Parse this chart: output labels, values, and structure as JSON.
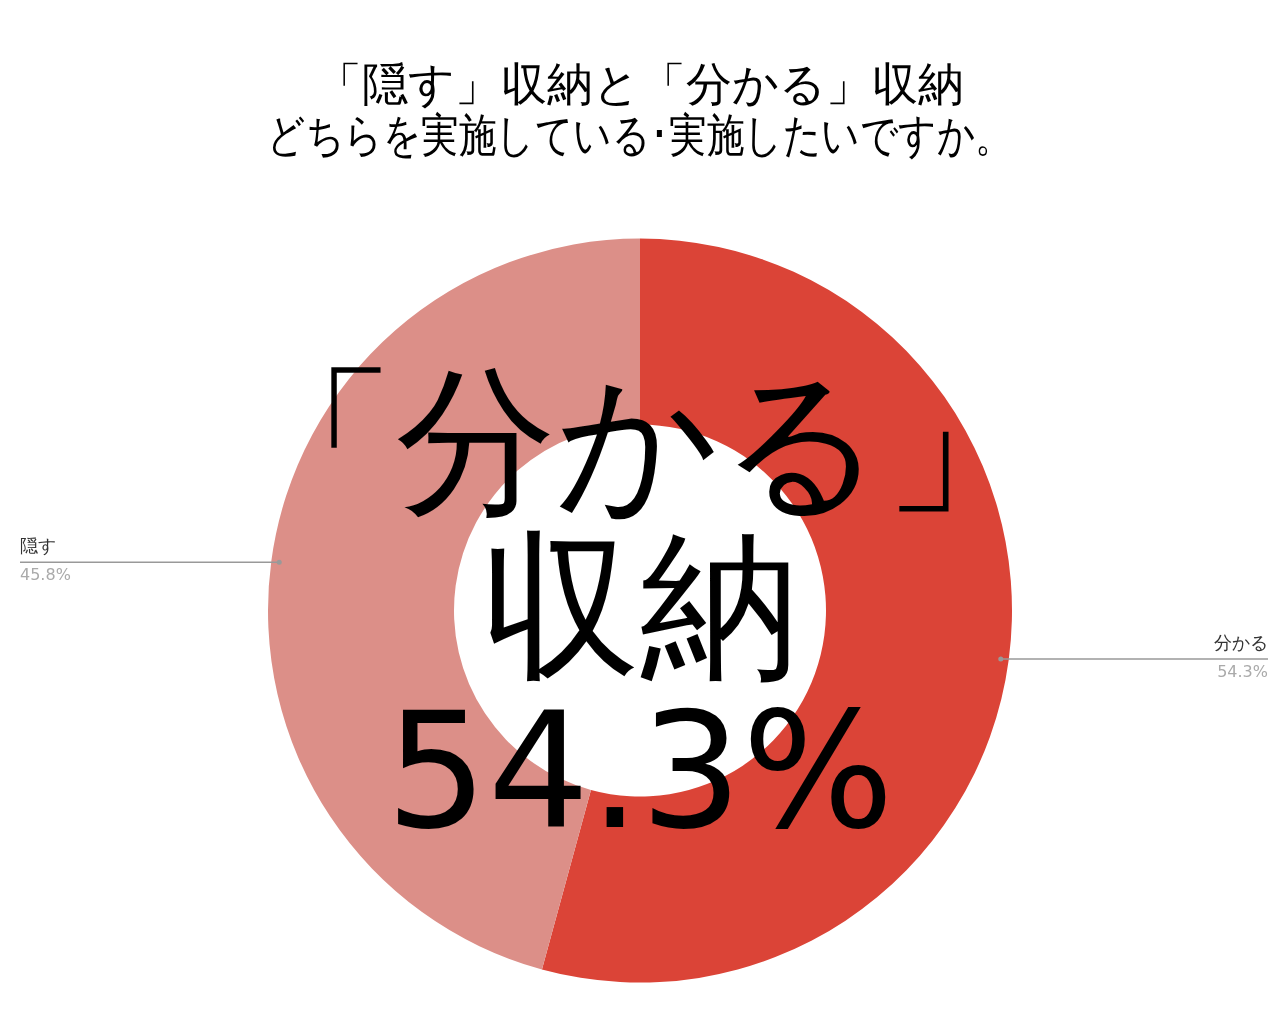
{
  "chart_data": {
    "type": "donut",
    "title": "「隠す」収納と「分かる」収納",
    "subtitle": "どちらを実施している･実施したいですか。",
    "categories": [
      "分かる",
      "隠す"
    ],
    "values": [
      54.3,
      45.8
    ],
    "value_labels": [
      "54.3%",
      "45.8%"
    ],
    "colors": [
      "#db4437",
      "#dc8f88"
    ],
    "legend": false,
    "annotations": [
      "「分かる」",
      "収納",
      "54.3%"
    ]
  }
}
